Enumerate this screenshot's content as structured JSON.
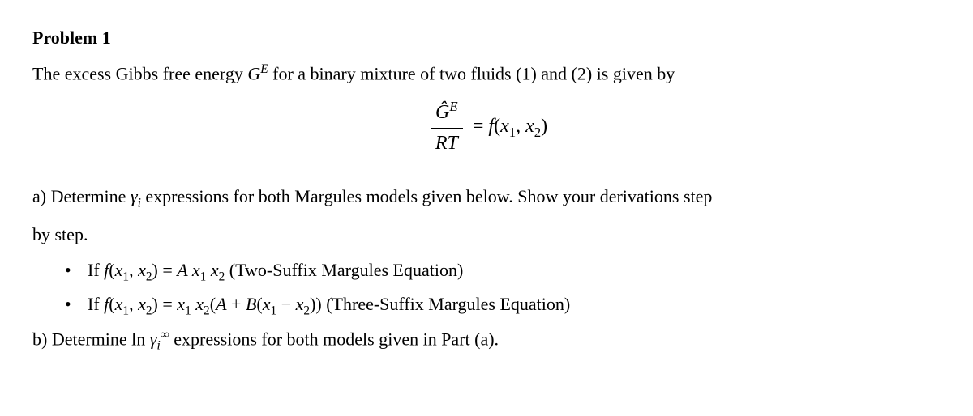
{
  "title": "Problem 1",
  "intro_pre": "The excess Gibbs free energy ",
  "intro_sym_G": "G",
  "intro_sym_E": "E",
  "intro_post": " for a binary mixture of two fluids (1) and (2) is given by",
  "eq": {
    "num_G": "Ĝ",
    "num_E": "E",
    "den_R": "R",
    "den_T": "T",
    "eqs": " = ",
    "f": "f",
    "lp": "(",
    "x1": "x",
    "s1": "1",
    "comma": ", ",
    "x2": "x",
    "s2": "2",
    "rp": ")"
  },
  "a": {
    "pre": "a) Determine ",
    "gamma": "γ",
    "i": "i",
    "mid": " expressions for both Margules models given below. Show your derivations step",
    "line2": "by step."
  },
  "b1": {
    "pre": "If ",
    "f": "f",
    "lp": "(",
    "x1": "x",
    "s1": "1",
    "comma": ", ",
    "x2": "x",
    "s2": "2",
    "rp": ")",
    "eqs": " = ",
    "A": " A ",
    "x1b": "x",
    "s1b": "1",
    "sp": " ",
    "x2b": "x",
    "s2b": "2",
    "tail": " (Two-Suffix Margules Equation)"
  },
  "b2": {
    "pre": "If ",
    "f": "f",
    "lp": "(",
    "x1": "x",
    "s1": "1",
    "comma": ", ",
    "x2": "x",
    "s2": "2",
    "rp": ")",
    "eqs": " = ",
    "x1b": "x",
    "s1b": "1",
    "sp": " ",
    "x2b": "x",
    "s2b": "2",
    "lp2": "(",
    "A": "A",
    "plus": " + ",
    "B": "B",
    "lp3": "(",
    "x1c": "x",
    "s1c": "1",
    "minus": " − ",
    "x2c": "x",
    "s2c": "2",
    "rp3": ")",
    "rp2": ")",
    "tail": " (Three-Suffix Margules Equation)"
  },
  "bpart": {
    "pre": "b) Determine ",
    "ln": "ln ",
    "gamma": "γ",
    "i": "i",
    "inf": "∞",
    "post": " expressions for both models given in Part (a)."
  }
}
